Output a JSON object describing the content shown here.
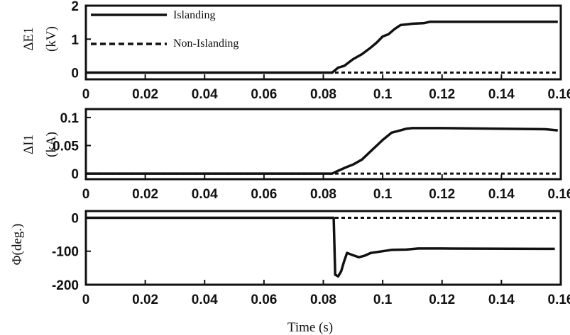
{
  "chart_data": [
    {
      "type": "line",
      "ylabel_lines": [
        "ΔE1",
        "(kV)"
      ],
      "xlim": [
        0,
        0.16
      ],
      "ylim": [
        -0.2,
        2
      ],
      "yticks": [
        0,
        1,
        2
      ],
      "xticks": [
        0,
        0.02,
        0.04,
        0.06,
        0.08,
        0.1,
        0.12,
        0.14,
        0.16
      ],
      "legend": {
        "position": "top-left"
      },
      "series": [
        {
          "name": "Islanding",
          "style": "solid",
          "x": [
            0,
            0.08,
            0.083,
            0.085,
            0.087,
            0.09,
            0.093,
            0.096,
            0.098,
            0.1,
            0.102,
            0.104,
            0.106,
            0.108,
            0.11,
            0.114,
            0.116,
            0.12,
            0.159
          ],
          "y": [
            0,
            0,
            0,
            0.15,
            0.2,
            0.4,
            0.55,
            0.75,
            0.9,
            1.08,
            1.15,
            1.3,
            1.42,
            1.44,
            1.46,
            1.48,
            1.52,
            1.52,
            1.52
          ]
        },
        {
          "name": "Non-Islanding",
          "style": "dashed",
          "x": [
            0,
            0.159
          ],
          "y": [
            0,
            0
          ]
        }
      ]
    },
    {
      "type": "line",
      "ylabel_lines": [
        "ΔI1",
        "(kA)"
      ],
      "xlim": [
        0,
        0.16
      ],
      "ylim": [
        -0.01,
        0.115
      ],
      "yticks": [
        0,
        0.05,
        0.1
      ],
      "xticks": [
        0,
        0.02,
        0.04,
        0.06,
        0.08,
        0.1,
        0.12,
        0.14,
        0.16
      ],
      "series": [
        {
          "name": "Islanding",
          "style": "solid",
          "x": [
            0,
            0.083,
            0.085,
            0.088,
            0.09,
            0.093,
            0.096,
            0.098,
            0.1,
            0.103,
            0.106,
            0.108,
            0.11,
            0.12,
            0.155,
            0.159
          ],
          "y": [
            0,
            0,
            0.005,
            0.012,
            0.016,
            0.025,
            0.04,
            0.05,
            0.06,
            0.073,
            0.077,
            0.08,
            0.081,
            0.081,
            0.079,
            0.077
          ]
        },
        {
          "name": "Non-Islanding",
          "style": "dashed",
          "x": [
            0,
            0.159
          ],
          "y": [
            0,
            0
          ]
        }
      ]
    },
    {
      "type": "line",
      "ylabel": "Φ(deg.)",
      "xlabel": "Time (s)",
      "xlim": [
        0,
        0.16
      ],
      "ylim": [
        -200,
        20
      ],
      "yticks": [
        -200,
        -100,
        0
      ],
      "xticks": [
        0,
        0.02,
        0.04,
        0.06,
        0.08,
        0.1,
        0.12,
        0.14,
        0.16
      ],
      "series": [
        {
          "name": "Islanding",
          "style": "solid",
          "x": [
            0,
            0.0835,
            0.084,
            0.085,
            0.086,
            0.087,
            0.088,
            0.09,
            0.092,
            0.094,
            0.096,
            0.1,
            0.103,
            0.108,
            0.112,
            0.118,
            0.12,
            0.158
          ],
          "y": [
            0,
            0,
            -170,
            -175,
            -160,
            -130,
            -105,
            -112,
            -118,
            -113,
            -105,
            -100,
            -96,
            -95,
            -92,
            -92,
            -92,
            -93
          ]
        },
        {
          "name": "Non-Islanding",
          "style": "dashed",
          "x": [
            0,
            0.159
          ],
          "y": [
            0,
            0
          ]
        }
      ]
    }
  ]
}
